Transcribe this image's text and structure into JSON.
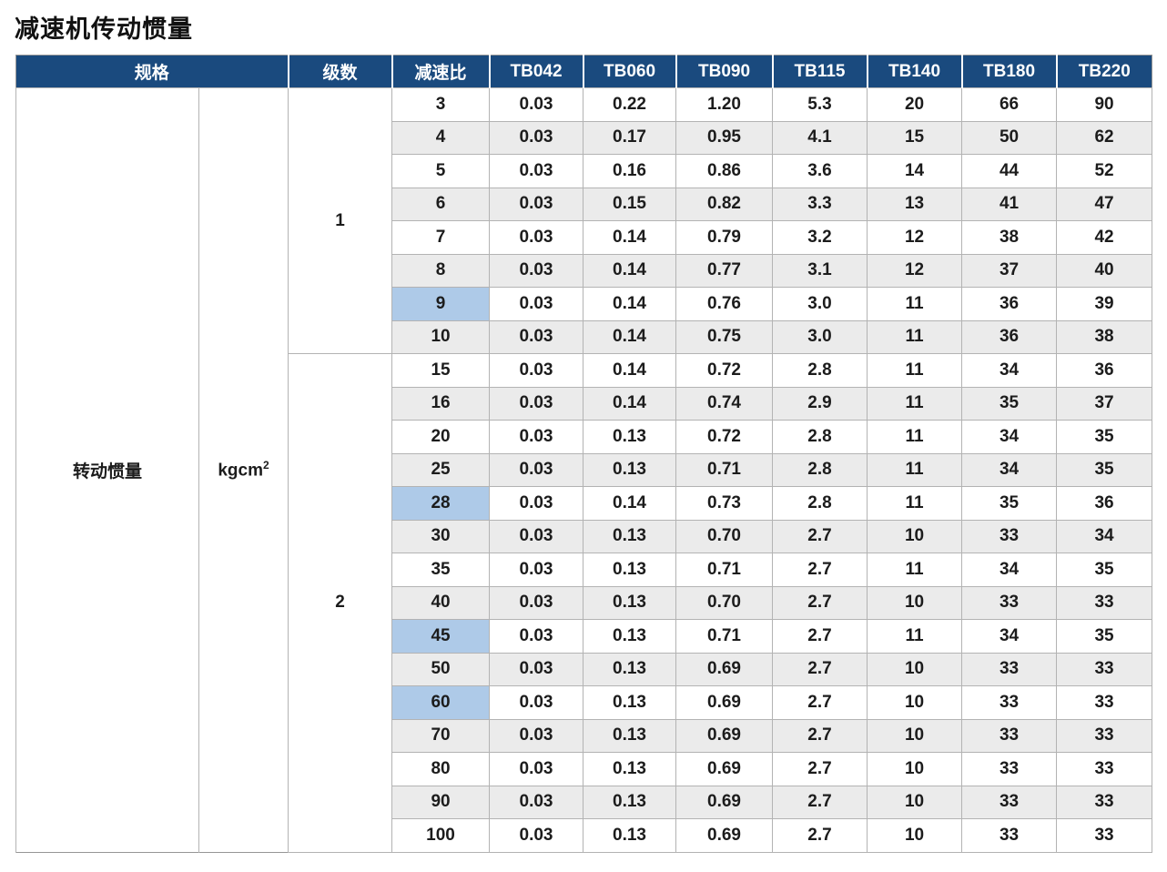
{
  "page": {
    "title": "减速机传动惯量"
  },
  "table": {
    "header": {
      "spec_label": "规格",
      "stage_label": "级数",
      "ratio_label": "减速比",
      "models": [
        "TB042",
        "TB060",
        "TB090",
        "TB115",
        "TB140",
        "TB180",
        "TB220"
      ]
    },
    "spec": {
      "name": "转动惯量",
      "unit_base": "kgcm",
      "unit_exp": "2"
    },
    "groups": [
      {
        "stage": "1",
        "rows": [
          {
            "ratio": "3",
            "highlight": false,
            "values": [
              "0.03",
              "0.22",
              "1.20",
              "5.3",
              "20",
              "66",
              "90"
            ]
          },
          {
            "ratio": "4",
            "highlight": false,
            "values": [
              "0.03",
              "0.17",
              "0.95",
              "4.1",
              "15",
              "50",
              "62"
            ]
          },
          {
            "ratio": "5",
            "highlight": false,
            "values": [
              "0.03",
              "0.16",
              "0.86",
              "3.6",
              "14",
              "44",
              "52"
            ]
          },
          {
            "ratio": "6",
            "highlight": true,
            "values": [
              "0.03",
              "0.15",
              "0.82",
              "3.3",
              "13",
              "41",
              "47"
            ]
          },
          {
            "ratio": "7",
            "highlight": false,
            "values": [
              "0.03",
              "0.14",
              "0.79",
              "3.2",
              "12",
              "38",
              "42"
            ]
          },
          {
            "ratio": "8",
            "highlight": false,
            "values": [
              "0.03",
              "0.14",
              "0.77",
              "3.1",
              "12",
              "37",
              "40"
            ]
          },
          {
            "ratio": "9",
            "highlight": true,
            "values": [
              "0.03",
              "0.14",
              "0.76",
              "3.0",
              "11",
              "36",
              "39"
            ]
          },
          {
            "ratio": "10",
            "highlight": false,
            "values": [
              "0.03",
              "0.14",
              "0.75",
              "3.0",
              "11",
              "36",
              "38"
            ]
          }
        ]
      },
      {
        "stage": "2",
        "rows": [
          {
            "ratio": "15",
            "highlight": false,
            "values": [
              "0.03",
              "0.14",
              "0.72",
              "2.8",
              "11",
              "34",
              "36"
            ]
          },
          {
            "ratio": "16",
            "highlight": true,
            "values": [
              "0.03",
              "0.14",
              "0.74",
              "2.9",
              "11",
              "35",
              "37"
            ]
          },
          {
            "ratio": "20",
            "highlight": false,
            "values": [
              "0.03",
              "0.13",
              "0.72",
              "2.8",
              "11",
              "34",
              "35"
            ]
          },
          {
            "ratio": "25",
            "highlight": false,
            "values": [
              "0.03",
              "0.13",
              "0.71",
              "2.8",
              "11",
              "34",
              "35"
            ]
          },
          {
            "ratio": "28",
            "highlight": true,
            "values": [
              "0.03",
              "0.14",
              "0.73",
              "2.8",
              "11",
              "35",
              "36"
            ]
          },
          {
            "ratio": "30",
            "highlight": false,
            "values": [
              "0.03",
              "0.13",
              "0.70",
              "2.7",
              "10",
              "33",
              "34"
            ]
          },
          {
            "ratio": "35",
            "highlight": false,
            "values": [
              "0.03",
              "0.13",
              "0.71",
              "2.7",
              "11",
              "34",
              "35"
            ]
          },
          {
            "ratio": "40",
            "highlight": false,
            "values": [
              "0.03",
              "0.13",
              "0.70",
              "2.7",
              "10",
              "33",
              "33"
            ]
          },
          {
            "ratio": "45",
            "highlight": true,
            "values": [
              "0.03",
              "0.13",
              "0.71",
              "2.7",
              "11",
              "34",
              "35"
            ]
          },
          {
            "ratio": "50",
            "highlight": false,
            "values": [
              "0.03",
              "0.13",
              "0.69",
              "2.7",
              "10",
              "33",
              "33"
            ]
          },
          {
            "ratio": "60",
            "highlight": true,
            "values": [
              "0.03",
              "0.13",
              "0.69",
              "2.7",
              "10",
              "33",
              "33"
            ]
          },
          {
            "ratio": "70",
            "highlight": false,
            "values": [
              "0.03",
              "0.13",
              "0.69",
              "2.7",
              "10",
              "33",
              "33"
            ]
          },
          {
            "ratio": "80",
            "highlight": false,
            "values": [
              "0.03",
              "0.13",
              "0.69",
              "2.7",
              "10",
              "33",
              "33"
            ]
          },
          {
            "ratio": "90",
            "highlight": true,
            "values": [
              "0.03",
              "0.13",
              "0.69",
              "2.7",
              "10",
              "33",
              "33"
            ]
          },
          {
            "ratio": "100",
            "highlight": false,
            "values": [
              "0.03",
              "0.13",
              "0.69",
              "2.7",
              "10",
              "33",
              "33"
            ]
          }
        ]
      }
    ],
    "colors": {
      "header_bg": "#1a4a7e",
      "header_text": "#ffffff",
      "row_alt_bg": "#ebebeb",
      "ratio_highlight_bg": "#aecae8",
      "grid_border": "#b3b3b3"
    }
  }
}
